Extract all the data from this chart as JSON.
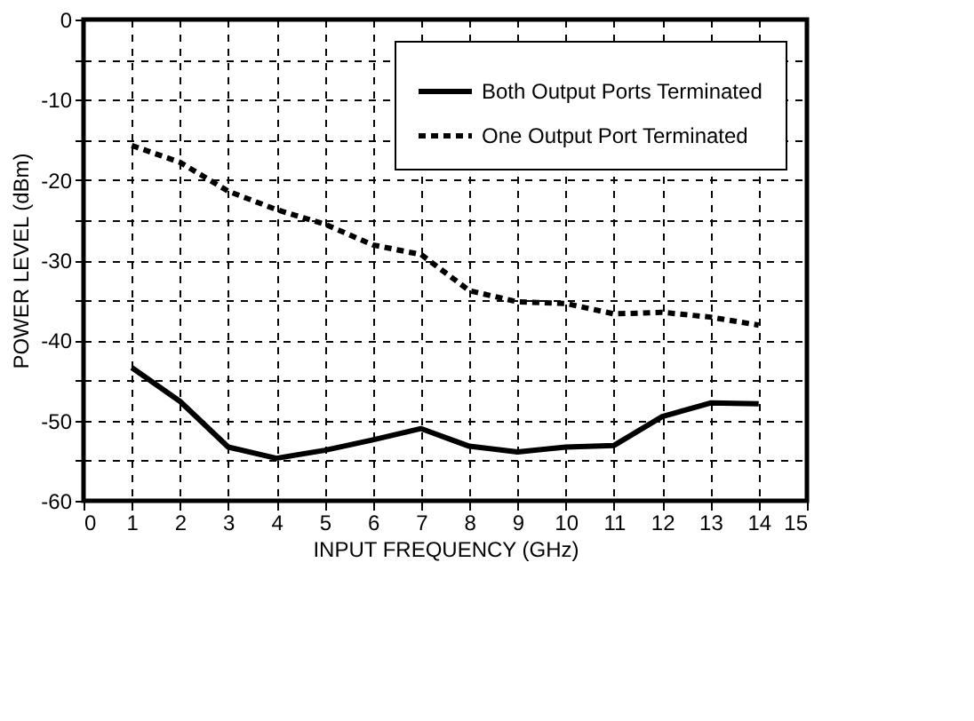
{
  "chart_data": {
    "type": "line",
    "xlabel": "INPUT FREQUENCY (GHz)",
    "ylabel": "POWER LEVEL (dBm)",
    "x": [
      1,
      2,
      3,
      4,
      5,
      6,
      7,
      8,
      9,
      10,
      11,
      12,
      13,
      14
    ],
    "series": [
      {
        "name": "Both Output Ports Terminated",
        "color": "#000000",
        "line_style": "solid",
        "values": [
          -43.4,
          -47.6,
          -53.3,
          -54.7,
          -53.7,
          -52.4,
          -51.0,
          -53.2,
          -53.9,
          -53.3,
          -53.1,
          -49.5,
          -47.8,
          -47.9
        ]
      },
      {
        "name": "One Output Port Terminated",
        "color": "#000000",
        "line_style": "dashed",
        "values": [
          -15.7,
          -17.8,
          -21.4,
          -23.7,
          -25.5,
          -28.1,
          -29.3,
          -33.8,
          -35.2,
          -35.4,
          -36.7,
          -36.5,
          -37.1,
          -38.1
        ]
      }
    ],
    "xlim": [
      0,
      15
    ],
    "xticks": [
      0,
      1,
      2,
      3,
      4,
      5,
      6,
      7,
      8,
      9,
      10,
      11,
      12,
      13,
      14,
      15
    ],
    "ylim": [
      -60,
      0
    ],
    "yticks": [
      -60,
      {
        "value": -55,
        "label": null
      },
      -50,
      {
        "value": -45,
        "label": null
      },
      -40,
      {
        "value": -35,
        "label": null
      },
      -30,
      {
        "value": -25,
        "label": null
      },
      -20,
      {
        "value": -15,
        "label": null
      },
      -10,
      {
        "value": -5,
        "label": null
      },
      0
    ],
    "grid": true,
    "legend": "top right",
    "marker": "none"
  }
}
